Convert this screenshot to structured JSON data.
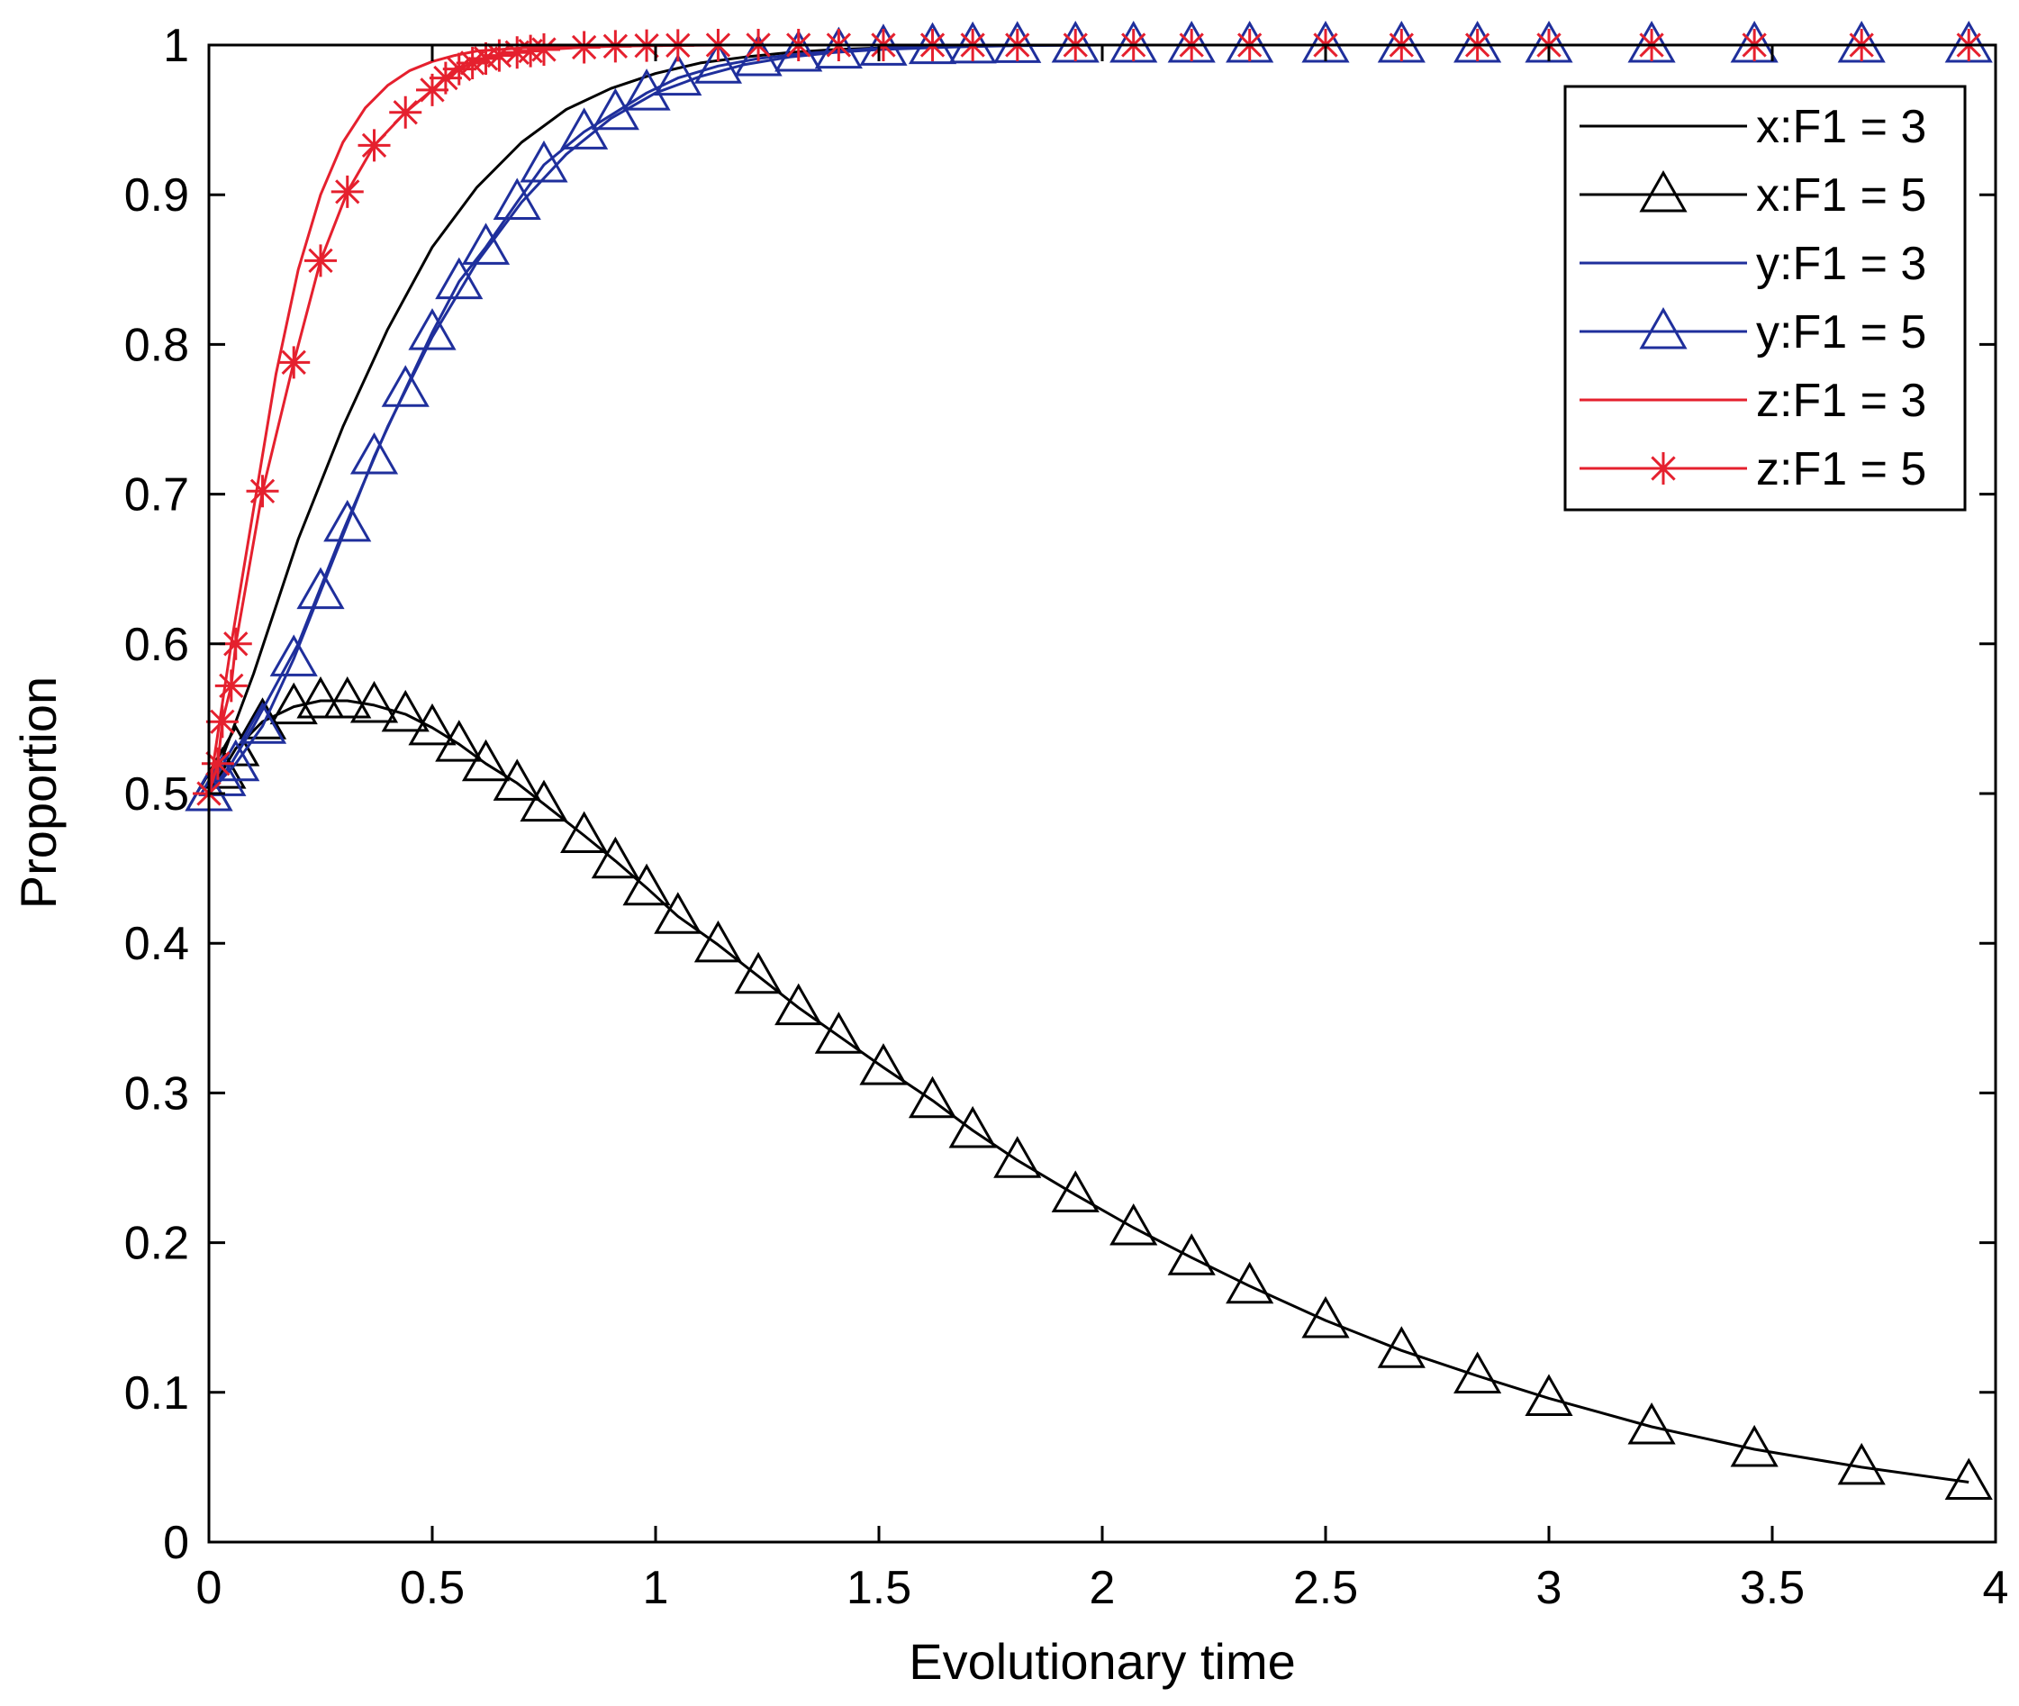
{
  "chart_data": {
    "type": "line",
    "title": "",
    "xlabel": "Evolutionary time",
    "ylabel": "Proportion",
    "xlim": [
      0,
      4
    ],
    "ylim": [
      0,
      1
    ],
    "grid": false,
    "legend_position": "top-right",
    "xticks": [
      {
        "value": 0,
        "label": "0"
      },
      {
        "value": 0.5,
        "label": "0.5"
      },
      {
        "value": 1,
        "label": "1"
      },
      {
        "value": 1.5,
        "label": "1.5"
      },
      {
        "value": 2,
        "label": "2"
      },
      {
        "value": 2.5,
        "label": "2.5"
      },
      {
        "value": 3,
        "label": "3"
      },
      {
        "value": 3.5,
        "label": "3.5"
      },
      {
        "value": 4,
        "label": "4"
      }
    ],
    "yticks": [
      {
        "value": 0,
        "label": "0"
      },
      {
        "value": 0.1,
        "label": "0.1"
      },
      {
        "value": 0.2,
        "label": "0.2"
      },
      {
        "value": 0.3,
        "label": "0.3"
      },
      {
        "value": 0.4,
        "label": "0.4"
      },
      {
        "value": 0.5,
        "label": "0.5"
      },
      {
        "value": 0.6,
        "label": "0.6"
      },
      {
        "value": 0.7,
        "label": "0.7"
      },
      {
        "value": 0.8,
        "label": "0.8"
      },
      {
        "value": 0.9,
        "label": "0.9"
      },
      {
        "value": 1,
        "label": "1"
      }
    ],
    "series": [
      {
        "name": "x:F1 = 3",
        "color": "#000000",
        "marker": "none",
        "x": [
          0,
          0.05,
          0.1,
          0.2,
          0.3,
          0.4,
          0.5,
          0.6,
          0.7,
          0.8,
          0.9,
          1.0,
          1.1,
          1.2,
          1.3,
          1.4,
          1.5,
          1.6,
          1.7,
          1.8,
          1.9,
          2.0
        ],
        "y": [
          0.5,
          0.54,
          0.58,
          0.67,
          0.745,
          0.81,
          0.865,
          0.905,
          0.935,
          0.957,
          0.971,
          0.981,
          0.988,
          0.992,
          0.995,
          0.997,
          0.998,
          0.999,
          0.9995,
          0.9998,
          0.9999,
          1.0
        ]
      },
      {
        "name": "x:F1 = 5",
        "color": "#000000",
        "marker": "triangle",
        "x": [
          0,
          0.03,
          0.06,
          0.12,
          0.19,
          0.25,
          0.31,
          0.37,
          0.44,
          0.5,
          0.56,
          0.62,
          0.69,
          0.75,
          0.84,
          0.91,
          0.98,
          1.05,
          1.14,
          1.23,
          1.32,
          1.41,
          1.51,
          1.62,
          1.71,
          1.81,
          1.94,
          2.07,
          2.2,
          2.33,
          2.5,
          2.67,
          2.84,
          3.0,
          3.23,
          3.46,
          3.7,
          3.94
        ],
        "y": [
          0.5,
          0.515,
          0.53,
          0.548,
          0.558,
          0.562,
          0.562,
          0.559,
          0.553,
          0.544,
          0.533,
          0.52,
          0.507,
          0.493,
          0.472,
          0.455,
          0.437,
          0.418,
          0.399,
          0.378,
          0.357,
          0.338,
          0.317,
          0.295,
          0.275,
          0.255,
          0.232,
          0.21,
          0.19,
          0.171,
          0.148,
          0.128,
          0.111,
          0.096,
          0.077,
          0.062,
          0.05,
          0.04
        ]
      },
      {
        "name": "y:F1 = 3",
        "color": "#1f2f9c",
        "marker": "none",
        "x": [
          0,
          0.05,
          0.1,
          0.2,
          0.3,
          0.4,
          0.5,
          0.6,
          0.7,
          0.8,
          0.9,
          1.0,
          1.1,
          1.2,
          1.3,
          1.4,
          1.5,
          1.6,
          1.7,
          1.8,
          1.9,
          2.0
        ],
        "y": [
          0.5,
          0.52,
          0.545,
          0.6,
          0.675,
          0.745,
          0.805,
          0.855,
          0.895,
          0.927,
          0.951,
          0.968,
          0.979,
          0.987,
          0.992,
          0.995,
          0.997,
          0.998,
          0.999,
          0.9995,
          0.9998,
          1.0
        ]
      },
      {
        "name": "y:F1 = 5",
        "color": "#1f2f9c",
        "marker": "triangle",
        "x": [
          0,
          0.03,
          0.06,
          0.12,
          0.19,
          0.25,
          0.31,
          0.37,
          0.44,
          0.5,
          0.56,
          0.62,
          0.69,
          0.75,
          0.84,
          0.91,
          0.98,
          1.05,
          1.14,
          1.23,
          1.32,
          1.41,
          1.51,
          1.62,
          1.71,
          1.81,
          1.94,
          2.07,
          2.2,
          2.33,
          2.5,
          2.67,
          2.84,
          3.0,
          3.23,
          3.46,
          3.7,
          3.94
        ],
        "y": [
          0.5,
          0.51,
          0.52,
          0.545,
          0.59,
          0.635,
          0.68,
          0.725,
          0.77,
          0.808,
          0.842,
          0.865,
          0.895,
          0.92,
          0.942,
          0.955,
          0.968,
          0.978,
          0.986,
          0.991,
          0.994,
          0.996,
          0.998,
          0.999,
          0.9995,
          0.9998,
          1.0,
          1.0,
          1.0,
          1.0,
          1.0,
          1.0,
          1.0,
          1.0,
          1.0,
          1.0,
          1.0,
          1.0
        ]
      },
      {
        "name": "z:F1 = 3",
        "color": "#e5202e",
        "marker": "none",
        "x": [
          0,
          0.02,
          0.05,
          0.1,
          0.15,
          0.2,
          0.25,
          0.3,
          0.35,
          0.4,
          0.45,
          0.5,
          0.55,
          0.6,
          0.65,
          0.7,
          0.8,
          0.9,
          1.0,
          1.2,
          1.5,
          2.0,
          4.0
        ],
        "y": [
          0.5,
          0.54,
          0.6,
          0.69,
          0.78,
          0.85,
          0.9,
          0.935,
          0.958,
          0.973,
          0.983,
          0.989,
          0.993,
          0.996,
          0.997,
          0.998,
          0.9993,
          0.9997,
          0.9999,
          1.0,
          1.0,
          1.0,
          1.0
        ]
      },
      {
        "name": "z:F1 = 5",
        "color": "#e5202e",
        "marker": "star",
        "x": [
          0,
          0.02,
          0.03,
          0.05,
          0.06,
          0.12,
          0.19,
          0.25,
          0.31,
          0.37,
          0.44,
          0.5,
          0.53,
          0.56,
          0.59,
          0.62,
          0.65,
          0.69,
          0.72,
          0.75,
          0.84,
          0.91,
          0.98,
          1.05,
          1.14,
          1.23,
          1.32,
          1.41,
          1.51,
          1.62,
          1.71,
          1.81,
          1.94,
          2.07,
          2.2,
          2.33,
          2.5,
          2.67,
          2.84,
          3.0,
          3.23,
          3.46,
          3.7,
          3.94
        ],
        "y": [
          0.5,
          0.52,
          0.548,
          0.572,
          0.6,
          0.702,
          0.788,
          0.856,
          0.902,
          0.933,
          0.955,
          0.97,
          0.978,
          0.984,
          0.988,
          0.991,
          0.993,
          0.995,
          0.996,
          0.997,
          0.9985,
          0.9992,
          0.9996,
          0.9998,
          1.0,
          1.0,
          1.0,
          1.0,
          1.0,
          1.0,
          1.0,
          1.0,
          1.0,
          1.0,
          1.0,
          1.0,
          1.0,
          1.0,
          1.0,
          1.0,
          1.0,
          1.0,
          1.0,
          1.0
        ]
      }
    ]
  }
}
